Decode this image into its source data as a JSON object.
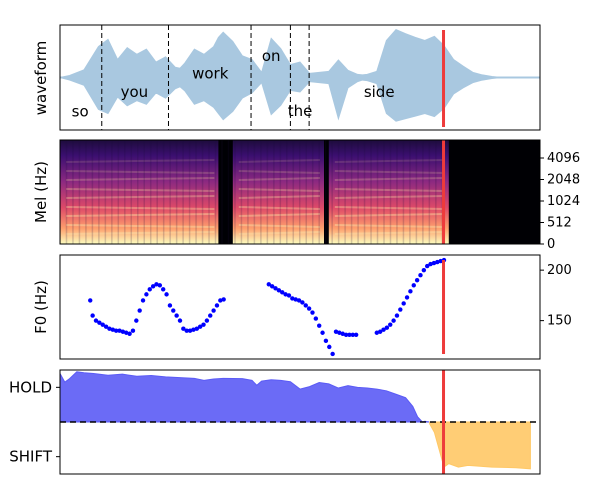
{
  "chart_data": [
    {
      "type": "area",
      "panel": "waveform",
      "ylabel": "waveform",
      "xlim": [
        0,
        1
      ],
      "ylim": [
        -1,
        1
      ],
      "fill_color": "#a9c8e0",
      "line_color": "#a9c8e0",
      "envelope": {
        "x": [
          0.0,
          0.02,
          0.05,
          0.08,
          0.1,
          0.12,
          0.14,
          0.16,
          0.18,
          0.2,
          0.22,
          0.24,
          0.25,
          0.26,
          0.28,
          0.3,
          0.32,
          0.33,
          0.34,
          0.36,
          0.38,
          0.4,
          0.42,
          0.44,
          0.46,
          0.48,
          0.5,
          0.52,
          0.54,
          0.56,
          0.58,
          0.6,
          0.62,
          0.63,
          0.64,
          0.66,
          0.68,
          0.7,
          0.72,
          0.74,
          0.76,
          0.78,
          0.8,
          0.82,
          0.84,
          0.86,
          0.88,
          0.9,
          0.92,
          1.0
        ],
        "upper": [
          0.0,
          0.04,
          0.15,
          0.6,
          0.74,
          0.35,
          0.58,
          0.45,
          0.55,
          0.3,
          0.4,
          0.2,
          0.18,
          0.28,
          0.55,
          0.45,
          0.6,
          0.78,
          0.88,
          0.7,
          0.42,
          0.35,
          0.1,
          0.76,
          0.56,
          0.25,
          0.3,
          0.08,
          0.1,
          0.12,
          0.34,
          0.14,
          0.06,
          0.05,
          0.06,
          0.12,
          0.72,
          0.93,
          0.85,
          0.78,
          0.72,
          0.8,
          0.62,
          0.35,
          0.22,
          0.1,
          0.05,
          0.02,
          0.0,
          0.0
        ],
        "lower": [
          0.0,
          -0.05,
          -0.15,
          -0.62,
          -0.7,
          -0.38,
          -0.55,
          -0.45,
          -0.52,
          -0.3,
          -0.4,
          -0.22,
          -0.18,
          -0.26,
          -0.52,
          -0.45,
          -0.58,
          -0.7,
          -0.82,
          -0.66,
          -0.4,
          -0.3,
          -0.1,
          -0.72,
          -0.54,
          -0.25,
          -0.28,
          -0.08,
          -0.1,
          -0.12,
          -0.8,
          -0.2,
          -0.08,
          -0.05,
          -0.06,
          -0.12,
          -0.7,
          -0.85,
          -0.8,
          -0.75,
          -0.7,
          -0.76,
          -0.6,
          -0.32,
          -0.2,
          -0.1,
          -0.05,
          -0.02,
          0.0,
          0.0
        ]
      },
      "word_boundaries": [
        0.087,
        0.226,
        0.398,
        0.48,
        0.519
      ],
      "words": [
        {
          "label": "so",
          "x": 0.042,
          "y": -0.66
        },
        {
          "label": "you",
          "x": 0.155,
          "y": -0.28
        },
        {
          "label": "work",
          "x": 0.313,
          "y": 0.08
        },
        {
          "label": "on",
          "x": 0.44,
          "y": 0.42
        },
        {
          "label": "the",
          "x": 0.5,
          "y": -0.65
        },
        {
          "label": "side",
          "x": 0.665,
          "y": -0.28
        }
      ],
      "cursor_x": 0.799,
      "cursor_color": "#ee3b3b"
    },
    {
      "type": "heatmap",
      "panel": "mel-spectrogram",
      "ylabel": "Mel (Hz)",
      "xlim": [
        0,
        1
      ],
      "yticks": [
        0,
        512,
        1024,
        2048,
        4096
      ],
      "ytick_labels": [
        "0",
        "512",
        "1024",
        "2048",
        "4096"
      ],
      "yaxis_side": "right",
      "speech_segments": [
        [
          0.0,
          0.33
        ],
        [
          0.36,
          0.55
        ],
        [
          0.56,
          0.81
        ]
      ],
      "silence_after": 0.81,
      "colormap": "magma",
      "cursor_x": 0.799,
      "cursor_color": "#ee3b3b"
    },
    {
      "type": "scatter",
      "panel": "pitch",
      "ylabel": "F0 (Hz)",
      "xlim": [
        0,
        1
      ],
      "ylim": [
        112,
        215
      ],
      "yticks": [
        150,
        200
      ],
      "ytick_labels": [
        "150",
        "200"
      ],
      "yaxis_side": "right",
      "point_color": "#0000ff",
      "x": [
        0.063,
        0.068,
        0.075,
        0.082,
        0.089,
        0.096,
        0.103,
        0.11,
        0.117,
        0.124,
        0.131,
        0.138,
        0.145,
        0.152,
        0.159,
        0.166,
        0.173,
        0.18,
        0.187,
        0.194,
        0.201,
        0.208,
        0.215,
        0.222,
        0.229,
        0.236,
        0.243,
        0.25,
        0.257,
        0.264,
        0.271,
        0.278,
        0.285,
        0.292,
        0.299,
        0.306,
        0.313,
        0.32,
        0.327,
        0.334,
        0.341,
        0.435,
        0.442,
        0.449,
        0.456,
        0.463,
        0.47,
        0.477,
        0.484,
        0.491,
        0.498,
        0.505,
        0.512,
        0.519,
        0.526,
        0.533,
        0.54,
        0.547,
        0.554,
        0.561,
        0.568,
        0.575,
        0.582,
        0.589,
        0.596,
        0.603,
        0.61,
        0.617,
        0.66,
        0.667,
        0.674,
        0.681,
        0.688,
        0.695,
        0.702,
        0.709,
        0.716,
        0.723,
        0.73,
        0.737,
        0.744,
        0.751,
        0.758,
        0.765,
        0.772,
        0.779,
        0.786,
        0.793,
        0.8
      ],
      "y": [
        170,
        155,
        150,
        148,
        146,
        144,
        142,
        141,
        140,
        140,
        139,
        138,
        137,
        140,
        150,
        160,
        170,
        176,
        181,
        184,
        186,
        185,
        181,
        176,
        165,
        160,
        155,
        150,
        142,
        140,
        140,
        141,
        142,
        144,
        146,
        150,
        155,
        160,
        165,
        170,
        171,
        186,
        184,
        182,
        180,
        178,
        176,
        175,
        172,
        171,
        170,
        168,
        165,
        162,
        158,
        152,
        145,
        138,
        130,
        124,
        117,
        139,
        138,
        137,
        136,
        136,
        136,
        136,
        138,
        139,
        141,
        143,
        146,
        150,
        155,
        161,
        167,
        173,
        179,
        185,
        190,
        195,
        200,
        204,
        206,
        207,
        208,
        209,
        210
      ],
      "cursor_x": 0.799,
      "cursor_color": "#ee3b3b"
    },
    {
      "type": "area",
      "panel": "turn-taking",
      "yticks": [
        1,
        -1
      ],
      "ytick_labels": [
        "HOLD",
        "SHIFT"
      ],
      "xlim": [
        0,
        1
      ],
      "ylim": [
        -1.5,
        1.5
      ],
      "threshold": 0,
      "threshold_style": "dashed",
      "series": [
        {
          "name": "HOLD",
          "color": "#5b5bf5",
          "x": [
            0.0,
            0.01,
            0.02,
            0.035,
            0.05,
            0.07,
            0.1,
            0.13,
            0.16,
            0.19,
            0.22,
            0.25,
            0.28,
            0.3,
            0.32,
            0.34,
            0.38,
            0.4,
            0.41,
            0.42,
            0.44,
            0.46,
            0.48,
            0.5,
            0.52,
            0.54,
            0.56,
            0.58,
            0.6,
            0.62,
            0.64,
            0.66,
            0.68,
            0.7,
            0.72,
            0.735,
            0.745,
            0.755,
            0.76,
            0.77
          ],
          "y": [
            1.4,
            1.15,
            1.25,
            1.45,
            1.42,
            1.4,
            1.35,
            1.38,
            1.32,
            1.34,
            1.3,
            1.28,
            1.26,
            1.2,
            1.24,
            1.26,
            1.25,
            1.2,
            1.06,
            1.18,
            1.22,
            1.2,
            1.16,
            0.95,
            1.02,
            1.14,
            1.1,
            0.98,
            1.05,
            1.0,
            0.98,
            0.95,
            0.9,
            0.8,
            0.7,
            0.45,
            0.15,
            0.0,
            0.02,
            0.0
          ]
        },
        {
          "name": "SHIFT",
          "color": "#ffc866",
          "x": [
            0.77,
            0.78,
            0.79,
            0.8,
            0.81,
            0.83,
            0.85,
            0.9,
            0.95,
            0.98
          ],
          "y": [
            -0.05,
            -0.3,
            -0.8,
            -1.3,
            -1.2,
            -1.3,
            -1.25,
            -1.3,
            -1.32,
            -1.35
          ]
        }
      ],
      "cursor_x": 0.799,
      "cursor_color": "#ee3b3b"
    }
  ]
}
